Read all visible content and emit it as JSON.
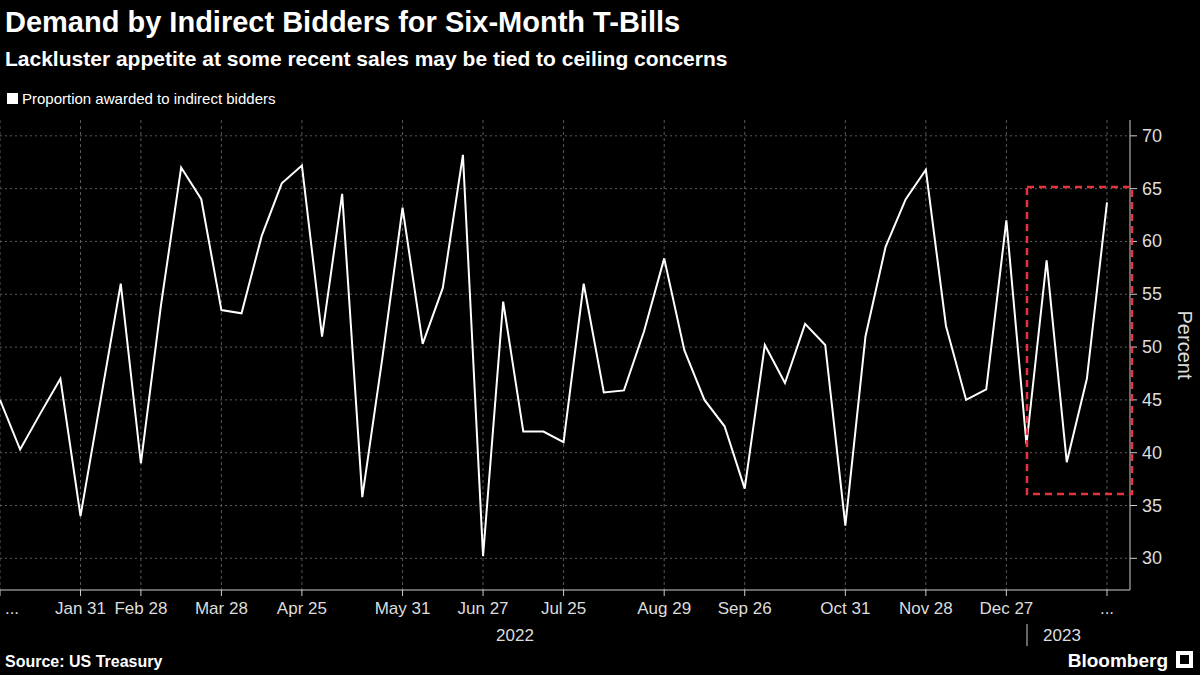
{
  "chart_data": {
    "type": "line",
    "title": "Demand by Indirect Bidders for Six-Month T-Bills",
    "subtitle": "Lackluster appetite at some recent sales may be tied to ceiling concerns",
    "categories": [
      "...",
      null,
      null,
      null,
      "Jan 31",
      null,
      null,
      "Feb 28",
      null,
      null,
      null,
      "Mar 28",
      null,
      null,
      null,
      "Apr 25",
      null,
      null,
      null,
      null,
      "May 31",
      null,
      null,
      null,
      "Jun 27",
      null,
      null,
      null,
      "Jul 25",
      null,
      null,
      null,
      null,
      "Aug 29",
      null,
      null,
      null,
      "Sep 26",
      null,
      null,
      null,
      null,
      "Oct 31",
      null,
      null,
      null,
      "Nov 28",
      null,
      null,
      null,
      "Dec 27",
      null,
      null,
      null,
      null,
      "..."
    ],
    "series": [
      {
        "name": "Proportion awarded to indirect bidders",
        "color": "#ffffff",
        "values": [
          45,
          40.3,
          43.7,
          47,
          34,
          45,
          56,
          39,
          54,
          67,
          64,
          53.5,
          53.2,
          60.5,
          65.5,
          67.2,
          51,
          64.5,
          35.8,
          49,
          63.2,
          50.3,
          55.6,
          68.2,
          30.2,
          54.3,
          42,
          42,
          41,
          56,
          45.7,
          45.9,
          51.5,
          58.4,
          49.7,
          45,
          42.5,
          36.6,
          50.2,
          46.6,
          52.2,
          50.2,
          33.1,
          51,
          59.5,
          64,
          66.8,
          52,
          45,
          46,
          62,
          40.8,
          58.2,
          39.1,
          47,
          63.7
        ]
      }
    ],
    "ylim": [
      27,
      71.5
    ],
    "yticks": [
      30,
      35,
      40,
      45,
      50,
      55,
      60,
      65,
      70
    ],
    "y_label": "Percent",
    "x_groups": [
      "2022",
      "2023"
    ],
    "source": "Source: US Treasury",
    "brand": "Bloomberg",
    "grid": true
  }
}
